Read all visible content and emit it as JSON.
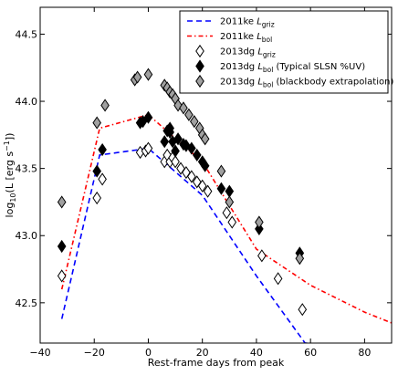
{
  "chart_data": {
    "type": "scatter",
    "title": "",
    "xlabel": "Rest-frame days from peak",
    "ylabel": {
      "main": "log",
      "sub": "10",
      "rest": "(L [erg s",
      "sup": "−1",
      "end": "])"
    },
    "xlim": [
      -40,
      90
    ],
    "ylim": [
      42.2,
      44.7
    ],
    "xticks": [
      -40,
      -20,
      0,
      20,
      40,
      60,
      80
    ],
    "xtick_labels": [
      "−40",
      "−20",
      "0",
      "20",
      "40",
      "60",
      "80"
    ],
    "yticks": [
      42.5,
      43.0,
      43.5,
      44.0,
      44.5
    ],
    "ytick_labels": [
      "42.5",
      "43.0",
      "43.5",
      "44.0",
      "44.5"
    ],
    "grid": false,
    "legend_position": "top-right",
    "series": [
      {
        "name": "2011ke L_griz",
        "legend": {
          "main": "2011ke ",
          "italic": "L",
          "sub": "griz",
          "rest": ""
        },
        "kind": "line",
        "color": "#0000ff",
        "dash": "dashed",
        "x": [
          -32,
          -18,
          0,
          20,
          40,
          58,
          60
        ],
        "y": [
          42.38,
          43.6,
          43.65,
          43.3,
          42.7,
          42.2,
          42.2
        ]
      },
      {
        "name": "2011ke L_bol",
        "legend": {
          "main": "2011ke ",
          "italic": "L",
          "sub": "bol",
          "rest": ""
        },
        "kind": "line",
        "color": "#ff0000",
        "dash": "dashdot",
        "x": [
          -32,
          -18,
          0,
          20,
          40,
          60,
          80,
          90
        ],
        "y": [
          42.6,
          43.8,
          43.9,
          43.55,
          42.9,
          42.63,
          42.43,
          42.35
        ]
      },
      {
        "name": "2013dg L_griz",
        "legend": {
          "main": "2013dg ",
          "italic": "L",
          "sub": "griz",
          "rest": ""
        },
        "kind": "marker",
        "fill": "#ffffff",
        "x": [
          -32,
          -19,
          -17,
          -3,
          -1,
          0,
          6,
          7,
          8,
          9,
          10,
          12,
          14,
          16,
          18,
          20,
          22,
          29,
          31,
          42,
          48,
          57
        ],
        "y": [
          42.7,
          43.28,
          43.42,
          43.62,
          43.63,
          43.65,
          43.55,
          43.6,
          43.55,
          43.58,
          43.55,
          43.5,
          43.47,
          43.44,
          43.4,
          43.37,
          43.33,
          43.17,
          43.1,
          42.85,
          42.68,
          42.45
        ]
      },
      {
        "name": "2013dg L_bol (Typical SLSN %UV)",
        "legend": {
          "main": "2013dg ",
          "italic": "L",
          "sub": "bol",
          "rest": " (Typical SLSN %UV)"
        },
        "kind": "marker",
        "fill": "#000000",
        "x": [
          -32,
          -19,
          -17,
          -3,
          -2,
          0,
          6,
          7,
          8,
          8,
          9,
          10,
          11,
          13,
          14,
          16,
          18,
          20,
          21,
          27,
          30,
          41,
          56
        ],
        "y": [
          42.92,
          43.48,
          43.64,
          43.84,
          43.85,
          43.88,
          43.7,
          43.78,
          43.77,
          43.8,
          43.7,
          43.63,
          43.72,
          43.68,
          43.67,
          43.65,
          43.6,
          43.55,
          43.52,
          43.35,
          43.33,
          43.05,
          42.87
        ]
      },
      {
        "name": "2013dg L_bol (blackbody extrapolation)",
        "legend": {
          "main": "2013dg ",
          "italic": "L",
          "sub": "bol",
          "rest": " (blackbody extrapolation)"
        },
        "kind": "marker",
        "fill": "#a0a0a0",
        "x": [
          -32,
          -19,
          -16,
          -5,
          -4,
          0,
          6,
          7,
          8,
          9,
          10,
          11,
          13,
          15,
          17,
          19,
          20,
          21,
          27,
          30,
          41,
          56
        ],
        "y": [
          43.25,
          43.84,
          43.97,
          44.16,
          44.18,
          44.2,
          44.12,
          44.1,
          44.07,
          44.05,
          44.02,
          43.97,
          43.95,
          43.9,
          43.85,
          43.8,
          43.75,
          43.72,
          43.48,
          43.25,
          43.1,
          42.83
        ]
      }
    ]
  }
}
